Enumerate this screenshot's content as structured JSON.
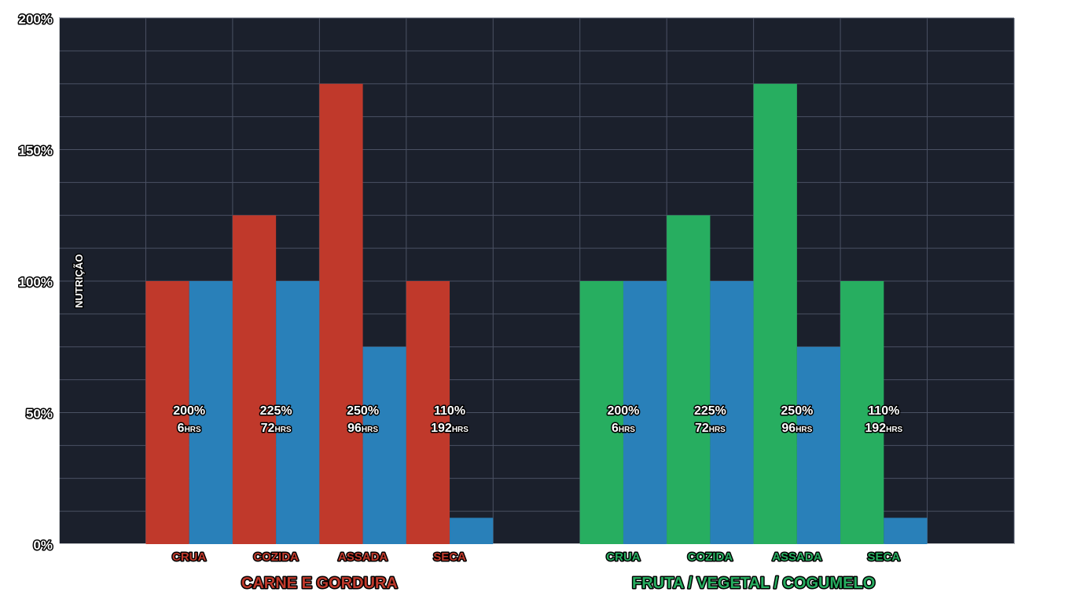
{
  "chart_data": {
    "type": "bar",
    "ylabel": "NUTRIÇÃO",
    "ylim": [
      0,
      200
    ],
    "y_ticks": [
      "0%",
      "50%",
      "100%",
      "150%",
      "200%"
    ],
    "grid": true,
    "groups": [
      {
        "name": "CARNE E GORDURA",
        "color": "#c0392b",
        "categories": [
          "CRUA",
          "COZIDA",
          "ASSADA",
          "SECA"
        ],
        "series": [
          {
            "name": "nutrition",
            "color": "#c0392b",
            "values": [
              100,
              125,
              175,
              100
            ]
          },
          {
            "name": "duration",
            "color": "#2980b9",
            "values": [
              100,
              100,
              75,
              10
            ]
          }
        ],
        "annotations": [
          {
            "pct": "200%",
            "hours": "6",
            "unit": "HRS"
          },
          {
            "pct": "225%",
            "hours": "72",
            "unit": "HRS"
          },
          {
            "pct": "250%",
            "hours": "96",
            "unit": "HRS"
          },
          {
            "pct": "110%",
            "hours": "192",
            "unit": "HRS"
          }
        ]
      },
      {
        "name": "FRUTA / VEGETAL / COGUMELO",
        "color": "#27ae60",
        "categories": [
          "CRUA",
          "COZIDA",
          "ASSADA",
          "SECA"
        ],
        "series": [
          {
            "name": "nutrition",
            "color": "#27ae60",
            "values": [
              100,
              125,
              175,
              100
            ]
          },
          {
            "name": "duration",
            "color": "#2980b9",
            "values": [
              100,
              100,
              75,
              10
            ]
          }
        ],
        "annotations": [
          {
            "pct": "200%",
            "hours": "6",
            "unit": "HRS"
          },
          {
            "pct": "225%",
            "hours": "72",
            "unit": "HRS"
          },
          {
            "pct": "250%",
            "hours": "96",
            "unit": "HRS"
          },
          {
            "pct": "110%",
            "hours": "192",
            "unit": "HRS"
          }
        ]
      }
    ]
  },
  "colors": {
    "plot_bg": "#1b202c",
    "grid": "#4a5163"
  }
}
